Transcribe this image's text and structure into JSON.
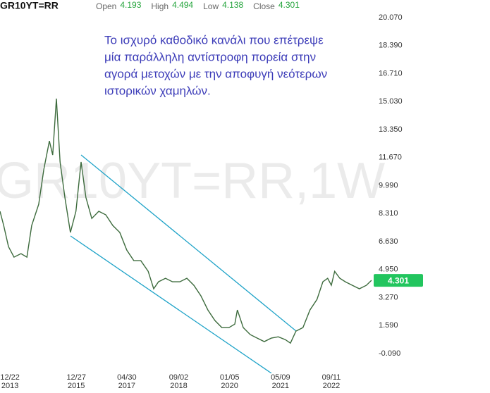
{
  "chart_data": {
    "type": "line",
    "symbol": "GR10YT=RR",
    "ohlc": [
      {
        "name": "Open",
        "value": 4.193
      },
      {
        "name": "High",
        "value": 4.494
      },
      {
        "name": "Low",
        "value": 4.138
      },
      {
        "name": "Close",
        "value": 4.301
      }
    ],
    "watermark": "GR10YT=RR,1W",
    "annotation": [
      "Το ισχυρό καθοδικό κανάλι που επέτρεψε",
      "μία παράλληλη αντίστροφη πορεία στην",
      "αγορά μετοχών με την αποφυγή νεότερων",
      "ιστορικών χαμηλών."
    ],
    "x": [
      2013.7,
      2013.8,
      2013.93,
      2014.08,
      2014.27,
      2014.43,
      2014.56,
      2014.75,
      2014.89,
      2015.04,
      2015.13,
      2015.23,
      2015.33,
      2015.46,
      2015.61,
      2015.76,
      2015.9,
      2016.03,
      2016.19,
      2016.38,
      2016.57,
      2016.76,
      2016.95,
      2017.14,
      2017.33,
      2017.52,
      2017.72,
      2017.87,
      2018.0,
      2018.19,
      2018.38,
      2018.58,
      2018.77,
      2018.96,
      2019.15,
      2019.34,
      2019.53,
      2019.72,
      2019.91,
      2020.07,
      2020.14,
      2020.3,
      2020.49,
      2020.68,
      2020.87,
      2021.06,
      2021.25,
      2021.44,
      2021.58,
      2021.73,
      2021.92,
      2022.11,
      2022.3,
      2022.46,
      2022.59,
      2022.69,
      2022.78,
      2022.92,
      2023.07,
      2023.26,
      2023.45,
      2023.64,
      2023.78
    ],
    "series": [
      {
        "name": "GR10YT=RR",
        "color": "#3d6b3d",
        "values": [
          8.45,
          7.6,
          6.33,
          5.7,
          5.91,
          5.7,
          7.6,
          8.87,
          10.98,
          12.67,
          11.83,
          15.21,
          11.41,
          9.29,
          7.18,
          8.45,
          11.41,
          9.29,
          8.02,
          8.45,
          8.24,
          7.6,
          7.18,
          6.12,
          5.49,
          5.49,
          4.85,
          3.8,
          4.22,
          4.43,
          4.22,
          4.22,
          4.43,
          4.01,
          3.38,
          2.53,
          1.9,
          1.47,
          1.47,
          1.68,
          2.53,
          1.47,
          1.05,
          0.84,
          0.63,
          0.84,
          0.92,
          0.75,
          0.54,
          1.26,
          1.47,
          2.53,
          3.16,
          4.22,
          4.43,
          4.01,
          4.85,
          4.43,
          4.22,
          4.01,
          3.8,
          4.01,
          4.31
        ]
      }
    ],
    "xlim": [
      2013.7,
      2023.8
    ],
    "ylim": [
      -1.27,
      21.13
    ],
    "xticks": [
      {
        "value": 2013.97,
        "label": "12/22\n2013"
      },
      {
        "value": 2015.77,
        "label": "12/27\n2015"
      },
      {
        "value": 2017.14,
        "label": "04/30\n2017"
      },
      {
        "value": 2018.55,
        "label": "09/02\n2018"
      },
      {
        "value": 2019.93,
        "label": "01/05\n2020"
      },
      {
        "value": 2021.31,
        "label": "05/09\n2021"
      },
      {
        "value": 2022.69,
        "label": "09/11\n2022"
      }
    ],
    "yticks": [
      {
        "value": 20.07,
        "label": "20.070"
      },
      {
        "value": 18.39,
        "label": "18.390"
      },
      {
        "value": 16.71,
        "label": "16.710"
      },
      {
        "value": 15.03,
        "label": "15.030"
      },
      {
        "value": 13.35,
        "label": "13.350"
      },
      {
        "value": 11.67,
        "label": "11.670"
      },
      {
        "value": 9.99,
        "label": "9.990"
      },
      {
        "value": 8.31,
        "label": "8.310"
      },
      {
        "value": 6.63,
        "label": "6.630"
      },
      {
        "value": 4.95,
        "label": "4.950"
      },
      {
        "value": 3.27,
        "label": "3.270"
      },
      {
        "value": 1.59,
        "label": "1.590"
      },
      {
        "value": -0.09,
        "label": "-0.090"
      }
    ],
    "grid": false
  }
}
